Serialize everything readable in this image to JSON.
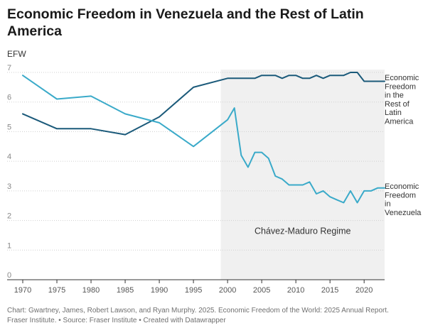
{
  "chart_data": {
    "type": "line",
    "title": "Economic Freedom in Venezuela and the Rest of Latin America",
    "ylabel": "EFW",
    "xlabel": "",
    "xlim": [
      1970,
      2023
    ],
    "ylim": [
      0,
      7
    ],
    "x_ticks": [
      1970,
      1975,
      1980,
      1985,
      1990,
      1995,
      2000,
      2005,
      2010,
      2015,
      2020
    ],
    "y_ticks": [
      0,
      1,
      2,
      3,
      4,
      5,
      6,
      7
    ],
    "grid": "horizontal dotted",
    "legend": "direct labels at right",
    "shaded_region": {
      "x_start": 1999,
      "x_end": 2023,
      "label": "Chávez-Maduro Regime",
      "color": "#f0f0f0"
    },
    "series": [
      {
        "name": "Economic Freedom in the Rest of Latin America",
        "label_lines": [
          "Economic",
          "Freedom",
          "in the",
          "Rest of",
          "Latin",
          "America"
        ],
        "color": "#1b5a7a",
        "points": [
          [
            1970,
            5.6
          ],
          [
            1975,
            5.1
          ],
          [
            1980,
            5.1
          ],
          [
            1985,
            4.9
          ],
          [
            1990,
            5.5
          ],
          [
            1995,
            6.5
          ],
          [
            2000,
            6.8
          ],
          [
            2001,
            6.8
          ],
          [
            2002,
            6.8
          ],
          [
            2003,
            6.8
          ],
          [
            2004,
            6.8
          ],
          [
            2005,
            6.9
          ],
          [
            2006,
            6.9
          ],
          [
            2007,
            6.9
          ],
          [
            2008,
            6.8
          ],
          [
            2009,
            6.9
          ],
          [
            2010,
            6.9
          ],
          [
            2011,
            6.8
          ],
          [
            2012,
            6.8
          ],
          [
            2013,
            6.9
          ],
          [
            2014,
            6.8
          ],
          [
            2015,
            6.9
          ],
          [
            2016,
            6.9
          ],
          [
            2017,
            6.9
          ],
          [
            2018,
            7.0
          ],
          [
            2019,
            7.0
          ],
          [
            2020,
            6.7
          ],
          [
            2021,
            6.7
          ],
          [
            2022,
            6.7
          ],
          [
            2023,
            6.7
          ]
        ]
      },
      {
        "name": "Economic Freedom in Venezuela",
        "label_lines": [
          "Economic",
          "Freedom",
          "in",
          "Venezuela"
        ],
        "color": "#3aaac9",
        "points": [
          [
            1970,
            6.9
          ],
          [
            1975,
            6.1
          ],
          [
            1980,
            6.2
          ],
          [
            1985,
            5.6
          ],
          [
            1990,
            5.3
          ],
          [
            1995,
            4.5
          ],
          [
            2000,
            5.4
          ],
          [
            2001,
            5.8
          ],
          [
            2002,
            4.2
          ],
          [
            2003,
            3.8
          ],
          [
            2004,
            4.3
          ],
          [
            2005,
            4.3
          ],
          [
            2006,
            4.1
          ],
          [
            2007,
            3.5
          ],
          [
            2008,
            3.4
          ],
          [
            2009,
            3.2
          ],
          [
            2010,
            3.2
          ],
          [
            2011,
            3.2
          ],
          [
            2012,
            3.3
          ],
          [
            2013,
            2.9
          ],
          [
            2014,
            3.0
          ],
          [
            2015,
            2.8
          ],
          [
            2016,
            2.7
          ],
          [
            2017,
            2.6
          ],
          [
            2018,
            3.0
          ],
          [
            2019,
            2.6
          ],
          [
            2020,
            3.0
          ],
          [
            2021,
            3.0
          ],
          [
            2022,
            3.1
          ],
          [
            2023,
            3.1
          ]
        ]
      }
    ]
  },
  "footer": {
    "line1": "Chart: Gwartney, James, Robert Lawson, and Ryan Murphy. 2025. Economic Freedom of the World: 2025 Annual Report.",
    "line2": "Fraser Institute. • Source: Fraser Institute • Created with Datawrapper"
  }
}
